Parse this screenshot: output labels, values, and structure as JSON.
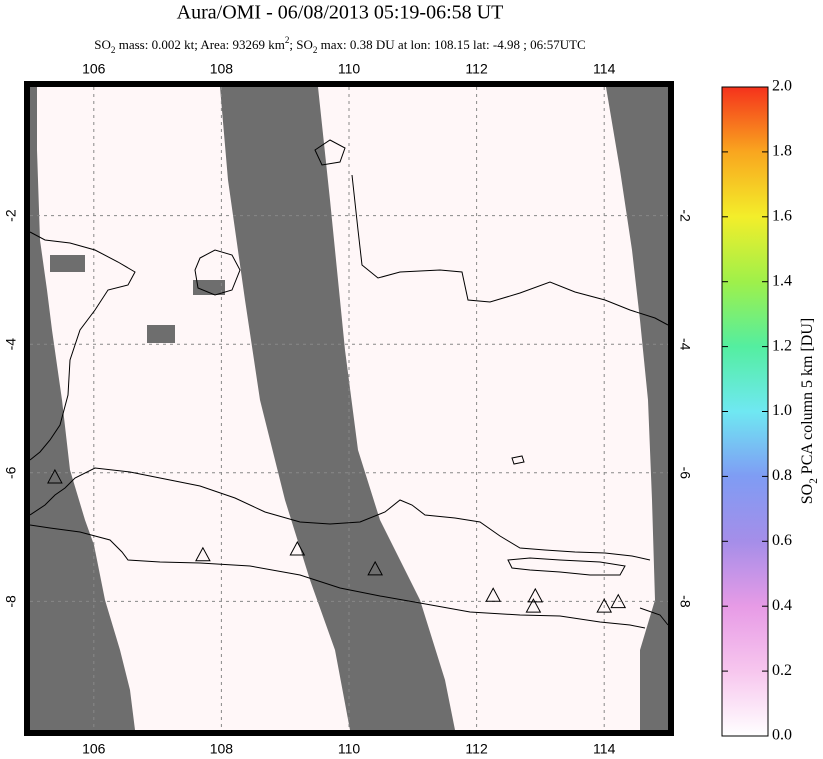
{
  "chart_data": {
    "type": "map",
    "title": "Aura/OMI - 06/08/2013 05:19-06:58 UT",
    "subtitle_parts": [
      "SO",
      {
        "text": "2",
        "script": "sub"
      },
      " mass: 0.002 kt; Area: 93269 km",
      {
        "text": "2",
        "script": "super"
      },
      "; SO",
      {
        "text": "2",
        "script": "sub"
      },
      " max: 0.38 DU at lon: 108.15 lat: -4.98 ; 06:57UTC"
    ],
    "xlim": [
      105,
      115
    ],
    "xticks": [
      106,
      108,
      110,
      112,
      114
    ],
    "ylim": [
      -10,
      0
    ],
    "yticks": [
      -2,
      -4,
      -6,
      -8
    ],
    "grid": true,
    "volcanoes": {
      "lon": [
        105.39,
        107.71,
        109.19,
        110.41,
        112.26,
        112.92,
        112.89,
        114.0,
        114.22
      ],
      "lat": [
        -6.08,
        -7.29,
        -7.2,
        -7.51,
        -7.92,
        -7.93,
        -8.09,
        -8.09,
        -8.02
      ],
      "color": "#000000"
    },
    "colorbar": {
      "lim": [
        0,
        2
      ],
      "ticks": [
        {
          "value": 0,
          "label": "0.0"
        },
        0.2,
        0.4,
        0.6,
        0.8,
        {
          "value": 1,
          "label": "1.0"
        },
        1.2,
        1.4,
        1.6,
        1.8,
        {
          "value": 2,
          "label": "2.0"
        }
      ],
      "label_parts": [
        "SO",
        {
          "text": "2",
          "script": "sub"
        },
        " PCA column 5 km [DU]"
      ],
      "colors": [
        "#ffffff",
        "#f7c6ee",
        "#e79be6",
        "#a58ee9",
        "#7f9cf4",
        "#6fe8f2",
        "#54eea0",
        "#9ff04a",
        "#f3ee2a",
        "#f9a61f",
        "#f5321c"
      ]
    }
  }
}
